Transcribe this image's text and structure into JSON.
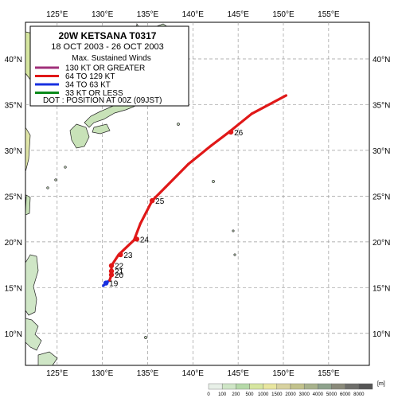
{
  "storm": {
    "title": "20W  KETSANA  T0317",
    "dates": "18 OCT 2003 - 26 OCT 2003"
  },
  "legend": {
    "header": "Max. Sustained Winds",
    "items": [
      {
        "label": "130 KT OR GREATER",
        "color": "#a0307a"
      },
      {
        "label": "64 TO 129 KT",
        "color": "#e01818"
      },
      {
        "label": "34 TO 63 KT",
        "color": "#1830e0"
      },
      {
        "label": "33 KT OR LESS",
        "color": "#0a8a1a"
      }
    ],
    "dot_note": "DOT : POSITION AT 00Z (09JST)"
  },
  "axes": {
    "lon_ticks": [
      "125°E",
      "130°E",
      "135°E",
      "140°E",
      "145°E",
      "150°E",
      "155°E"
    ],
    "lat_ticks": [
      "40°N",
      "35°N",
      "30°N",
      "25°N",
      "20°N",
      "15°N",
      "10°N"
    ]
  },
  "track": {
    "points": [
      {
        "lon": 130.1,
        "lat": 15.2,
        "cat": "34-63"
      },
      {
        "lon": 130.4,
        "lat": 15.5,
        "cat": "34-63"
      },
      {
        "lon": 130.8,
        "lat": 15.8,
        "cat": "34-63"
      },
      {
        "lon": 131.0,
        "lat": 16.4,
        "cat": "64-129"
      },
      {
        "lon": 131.0,
        "lat": 17.4,
        "cat": "64-129"
      },
      {
        "lon": 131.8,
        "lat": 18.6,
        "cat": "64-129"
      },
      {
        "lon": 133.5,
        "lat": 20.2,
        "cat": "64-129"
      },
      {
        "lon": 134.2,
        "lat": 22.0,
        "cat": "64-129"
      },
      {
        "lon": 135.5,
        "lat": 24.5,
        "cat": "64-129"
      },
      {
        "lon": 137.0,
        "lat": 26.0,
        "cat": "64-129"
      },
      {
        "lon": 139.5,
        "lat": 28.5,
        "cat": "64-129"
      },
      {
        "lon": 142.0,
        "lat": 30.5,
        "cat": "64-129"
      },
      {
        "lon": 144.0,
        "lat": 32.0,
        "cat": "64-129"
      },
      {
        "lon": 146.5,
        "lat": 34.0,
        "cat": "64-129"
      },
      {
        "lon": 150.3,
        "lat": 36.0,
        "cat": "64-129"
      }
    ],
    "daily": [
      {
        "day": "19",
        "lon": 130.4,
        "lat": 15.5
      },
      {
        "day": "20",
        "lon": 131.0,
        "lat": 16.4
      },
      {
        "day": "21",
        "lon": 131.0,
        "lat": 16.8
      },
      {
        "day": "22",
        "lon": 131.0,
        "lat": 17.4
      },
      {
        "day": "23",
        "lon": 132.0,
        "lat": 18.6
      },
      {
        "day": "24",
        "lon": 133.8,
        "lat": 20.3
      },
      {
        "day": "25",
        "lon": 135.5,
        "lat": 24.5
      },
      {
        "day": "26",
        "lon": 144.2,
        "lat": 32.0
      }
    ]
  },
  "elevation_scale": {
    "unit": "[m]",
    "labels": [
      "0",
      "100",
      "200",
      "500",
      "1000",
      "1500",
      "2000",
      "3000",
      "4000",
      "5000",
      "6000",
      "8000"
    ],
    "colors": [
      "#e8f0e8",
      "#cfe6c6",
      "#b5d9a8",
      "#d6e6a0",
      "#e8e6a0",
      "#d8d2a0",
      "#c2c28c",
      "#a8b28c",
      "#8ea28c",
      "#8a8a7a",
      "#6e6e6a",
      "#555555"
    ]
  }
}
